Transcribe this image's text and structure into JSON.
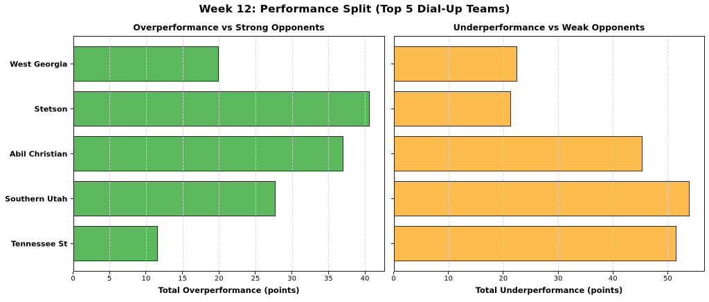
{
  "title": "Week 12: Performance Split (Top 5 Dial-Up Teams)",
  "colors": {
    "background": "#ffffff",
    "overperformance_bar": "#5cb85c",
    "underperformance_bar": "#fcbb4d",
    "bar_edge": "#2b2b2b",
    "gridline": "#d4d4d4",
    "spine": "#1a1a1a",
    "text": "#000000"
  },
  "chart_data": [
    {
      "type": "bar",
      "orientation": "horizontal",
      "title": "Overperformance vs Strong Opponents",
      "xlabel": "Total Overperformance (points)",
      "categories": [
        "West Georgia",
        "Stetson",
        "Abil Christian",
        "Southern Utah",
        "Tennessee St"
      ],
      "values": [
        20.0,
        40.7,
        37.1,
        27.8,
        11.6
      ],
      "xticks": [
        0,
        5,
        10,
        15,
        20,
        25,
        30,
        35,
        40
      ],
      "xlim": [
        0,
        42.7
      ],
      "bar_color": "#5cb85c",
      "bar_edge_color": "#2b2b2b",
      "grid": "vertical-dashed",
      "show_category_labels": true,
      "legend": "none"
    },
    {
      "type": "bar",
      "orientation": "horizontal",
      "title": "Underperformance vs Weak Opponents",
      "xlabel": "Total Underperformance (points)",
      "categories": [
        "West Georgia",
        "Stetson",
        "Abil Christian",
        "Southern Utah",
        "Tennessee St"
      ],
      "values": [
        22.6,
        21.4,
        45.4,
        54.0,
        51.6
      ],
      "xticks": [
        0,
        10,
        20,
        30,
        40,
        50
      ],
      "xlim": [
        0,
        56.7
      ],
      "bar_color": "#fcbb4d",
      "bar_edge_color": "#2b2b2b",
      "grid": "vertical-dashed",
      "show_category_labels": false,
      "legend": "none"
    }
  ]
}
